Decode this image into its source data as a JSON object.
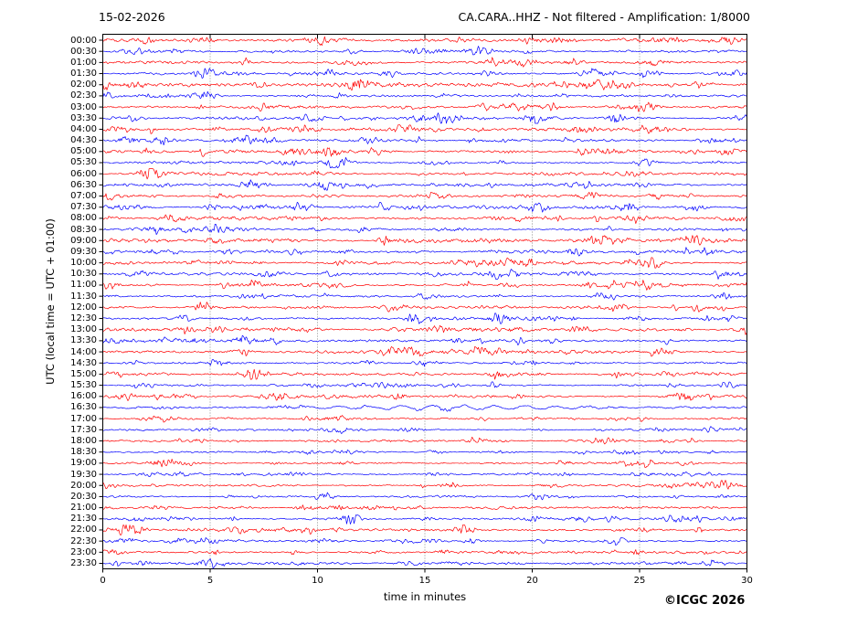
{
  "header": {
    "date_title": "15-02-2026",
    "station_title": "CA.CARA..HHZ - Not filtered - Amplification: 1/8000"
  },
  "footer": {
    "copyright": "©ICGC 2026"
  },
  "chart_data": {
    "type": "line",
    "subtype": "helicorder-dayplot",
    "title_left": "15-02-2026",
    "title_right": "CA.CARA..HHZ - Not filtered - Amplification: 1/8000",
    "xlabel": "time in minutes",
    "ylabel": "UTC (local time = UTC + 01:00)",
    "xlim": [
      0,
      30
    ],
    "x_ticks": [
      0,
      5,
      10,
      15,
      20,
      25,
      30
    ],
    "minutes_per_row": 30,
    "n_rows": 48,
    "grid": {
      "vertical_dotted_at": [
        5,
        10,
        15,
        20,
        25
      ],
      "color": "#6e6e6e"
    },
    "trace_colors": {
      "hour_row": "#ff0000",
      "half_hour_row": "#0000ff"
    },
    "waveform_note": "Continuous ambient seismic noise traces; exact sample values are not resolvable from the image. Rows are synthesized from the per-row seed/amp parameters below.",
    "rows": [
      {
        "label": "00:00",
        "color": "#ff0000",
        "seed": 101,
        "amp": 1.05
      },
      {
        "label": "00:30",
        "color": "#0000ff",
        "seed": 138,
        "amp": 0.8
      },
      {
        "label": "01:00",
        "color": "#ff0000",
        "seed": 175,
        "amp": 0.95
      },
      {
        "label": "01:30",
        "color": "#0000ff",
        "seed": 212,
        "amp": 0.85
      },
      {
        "label": "02:00",
        "color": "#ff0000",
        "seed": 249,
        "amp": 1.15
      },
      {
        "label": "02:30",
        "color": "#0000ff",
        "seed": 286,
        "amp": 0.8
      },
      {
        "label": "03:00",
        "color": "#ff0000",
        "seed": 323,
        "amp": 1.1
      },
      {
        "label": "03:30",
        "color": "#0000ff",
        "seed": 360,
        "amp": 1.0
      },
      {
        "label": "04:00",
        "color": "#ff0000",
        "seed": 397,
        "amp": 0.95
      },
      {
        "label": "04:30",
        "color": "#0000ff",
        "seed": 434,
        "amp": 1.0
      },
      {
        "label": "05:00",
        "color": "#ff0000",
        "seed": 471,
        "amp": 1.05
      },
      {
        "label": "05:30",
        "color": "#0000ff",
        "seed": 508,
        "amp": 0.9
      },
      {
        "label": "06:00",
        "color": "#ff0000",
        "seed": 545,
        "amp": 1.0
      },
      {
        "label": "06:30",
        "color": "#0000ff",
        "seed": 582,
        "amp": 0.95
      },
      {
        "label": "07:00",
        "color": "#ff0000",
        "seed": 619,
        "amp": 1.05
      },
      {
        "label": "07:30",
        "color": "#0000ff",
        "seed": 656,
        "amp": 1.0
      },
      {
        "label": "08:00",
        "color": "#ff0000",
        "seed": 693,
        "amp": 1.0
      },
      {
        "label": "08:30",
        "color": "#0000ff",
        "seed": 730,
        "amp": 1.05
      },
      {
        "label": "09:00",
        "color": "#ff0000",
        "seed": 767,
        "amp": 1.25
      },
      {
        "label": "09:30",
        "color": "#0000ff",
        "seed": 804,
        "amp": 1.0
      },
      {
        "label": "10:00",
        "color": "#ff0000",
        "seed": 841,
        "amp": 0.95
      },
      {
        "label": "10:30",
        "color": "#0000ff",
        "seed": 878,
        "amp": 0.85
      },
      {
        "label": "11:00",
        "color": "#ff0000",
        "seed": 915,
        "amp": 0.9
      },
      {
        "label": "11:30",
        "color": "#0000ff",
        "seed": 952,
        "amp": 0.7
      },
      {
        "label": "12:00",
        "color": "#ff0000",
        "seed": 989,
        "amp": 1.0
      },
      {
        "label": "12:30",
        "color": "#0000ff",
        "seed": 1026,
        "amp": 0.85
      },
      {
        "label": "13:00",
        "color": "#ff0000",
        "seed": 1063,
        "amp": 0.9
      },
      {
        "label": "13:30",
        "color": "#0000ff",
        "seed": 1100,
        "amp": 0.85
      },
      {
        "label": "14:00",
        "color": "#ff0000",
        "seed": 1137,
        "amp": 0.95
      },
      {
        "label": "14:30",
        "color": "#0000ff",
        "seed": 1174,
        "amp": 0.75
      },
      {
        "label": "15:00",
        "color": "#ff0000",
        "seed": 1211,
        "amp": 0.9
      },
      {
        "label": "15:30",
        "color": "#0000ff",
        "seed": 1248,
        "amp": 0.8
      },
      {
        "label": "16:00",
        "color": "#ff0000",
        "seed": 1285,
        "amp": 0.85
      },
      {
        "label": "16:30",
        "color": "#0000ff",
        "seed": 1322,
        "amp": 0.75,
        "lf": true
      },
      {
        "label": "17:00",
        "color": "#ff0000",
        "seed": 1359,
        "amp": 0.6
      },
      {
        "label": "17:30",
        "color": "#0000ff",
        "seed": 1396,
        "amp": 0.65
      },
      {
        "label": "18:00",
        "color": "#ff0000",
        "seed": 1433,
        "amp": 0.7
      },
      {
        "label": "18:30",
        "color": "#0000ff",
        "seed": 1470,
        "amp": 0.6
      },
      {
        "label": "19:00",
        "color": "#ff0000",
        "seed": 1507,
        "amp": 0.6
      },
      {
        "label": "19:30",
        "color": "#0000ff",
        "seed": 1544,
        "amp": 0.65
      },
      {
        "label": "20:00",
        "color": "#ff0000",
        "seed": 1581,
        "amp": 0.6
      },
      {
        "label": "20:30",
        "color": "#0000ff",
        "seed": 1618,
        "amp": 0.75
      },
      {
        "label": "21:00",
        "color": "#ff0000",
        "seed": 1655,
        "amp": 0.8
      },
      {
        "label": "21:30",
        "color": "#0000ff",
        "seed": 1692,
        "amp": 0.75
      },
      {
        "label": "22:00",
        "color": "#ff0000",
        "seed": 1729,
        "amp": 1.1
      },
      {
        "label": "22:30",
        "color": "#0000ff",
        "seed": 1766,
        "amp": 0.8
      },
      {
        "label": "23:00",
        "color": "#ff0000",
        "seed": 1803,
        "amp": 0.85
      },
      {
        "label": "23:30",
        "color": "#0000ff",
        "seed": 1840,
        "amp": 0.8
      }
    ]
  }
}
